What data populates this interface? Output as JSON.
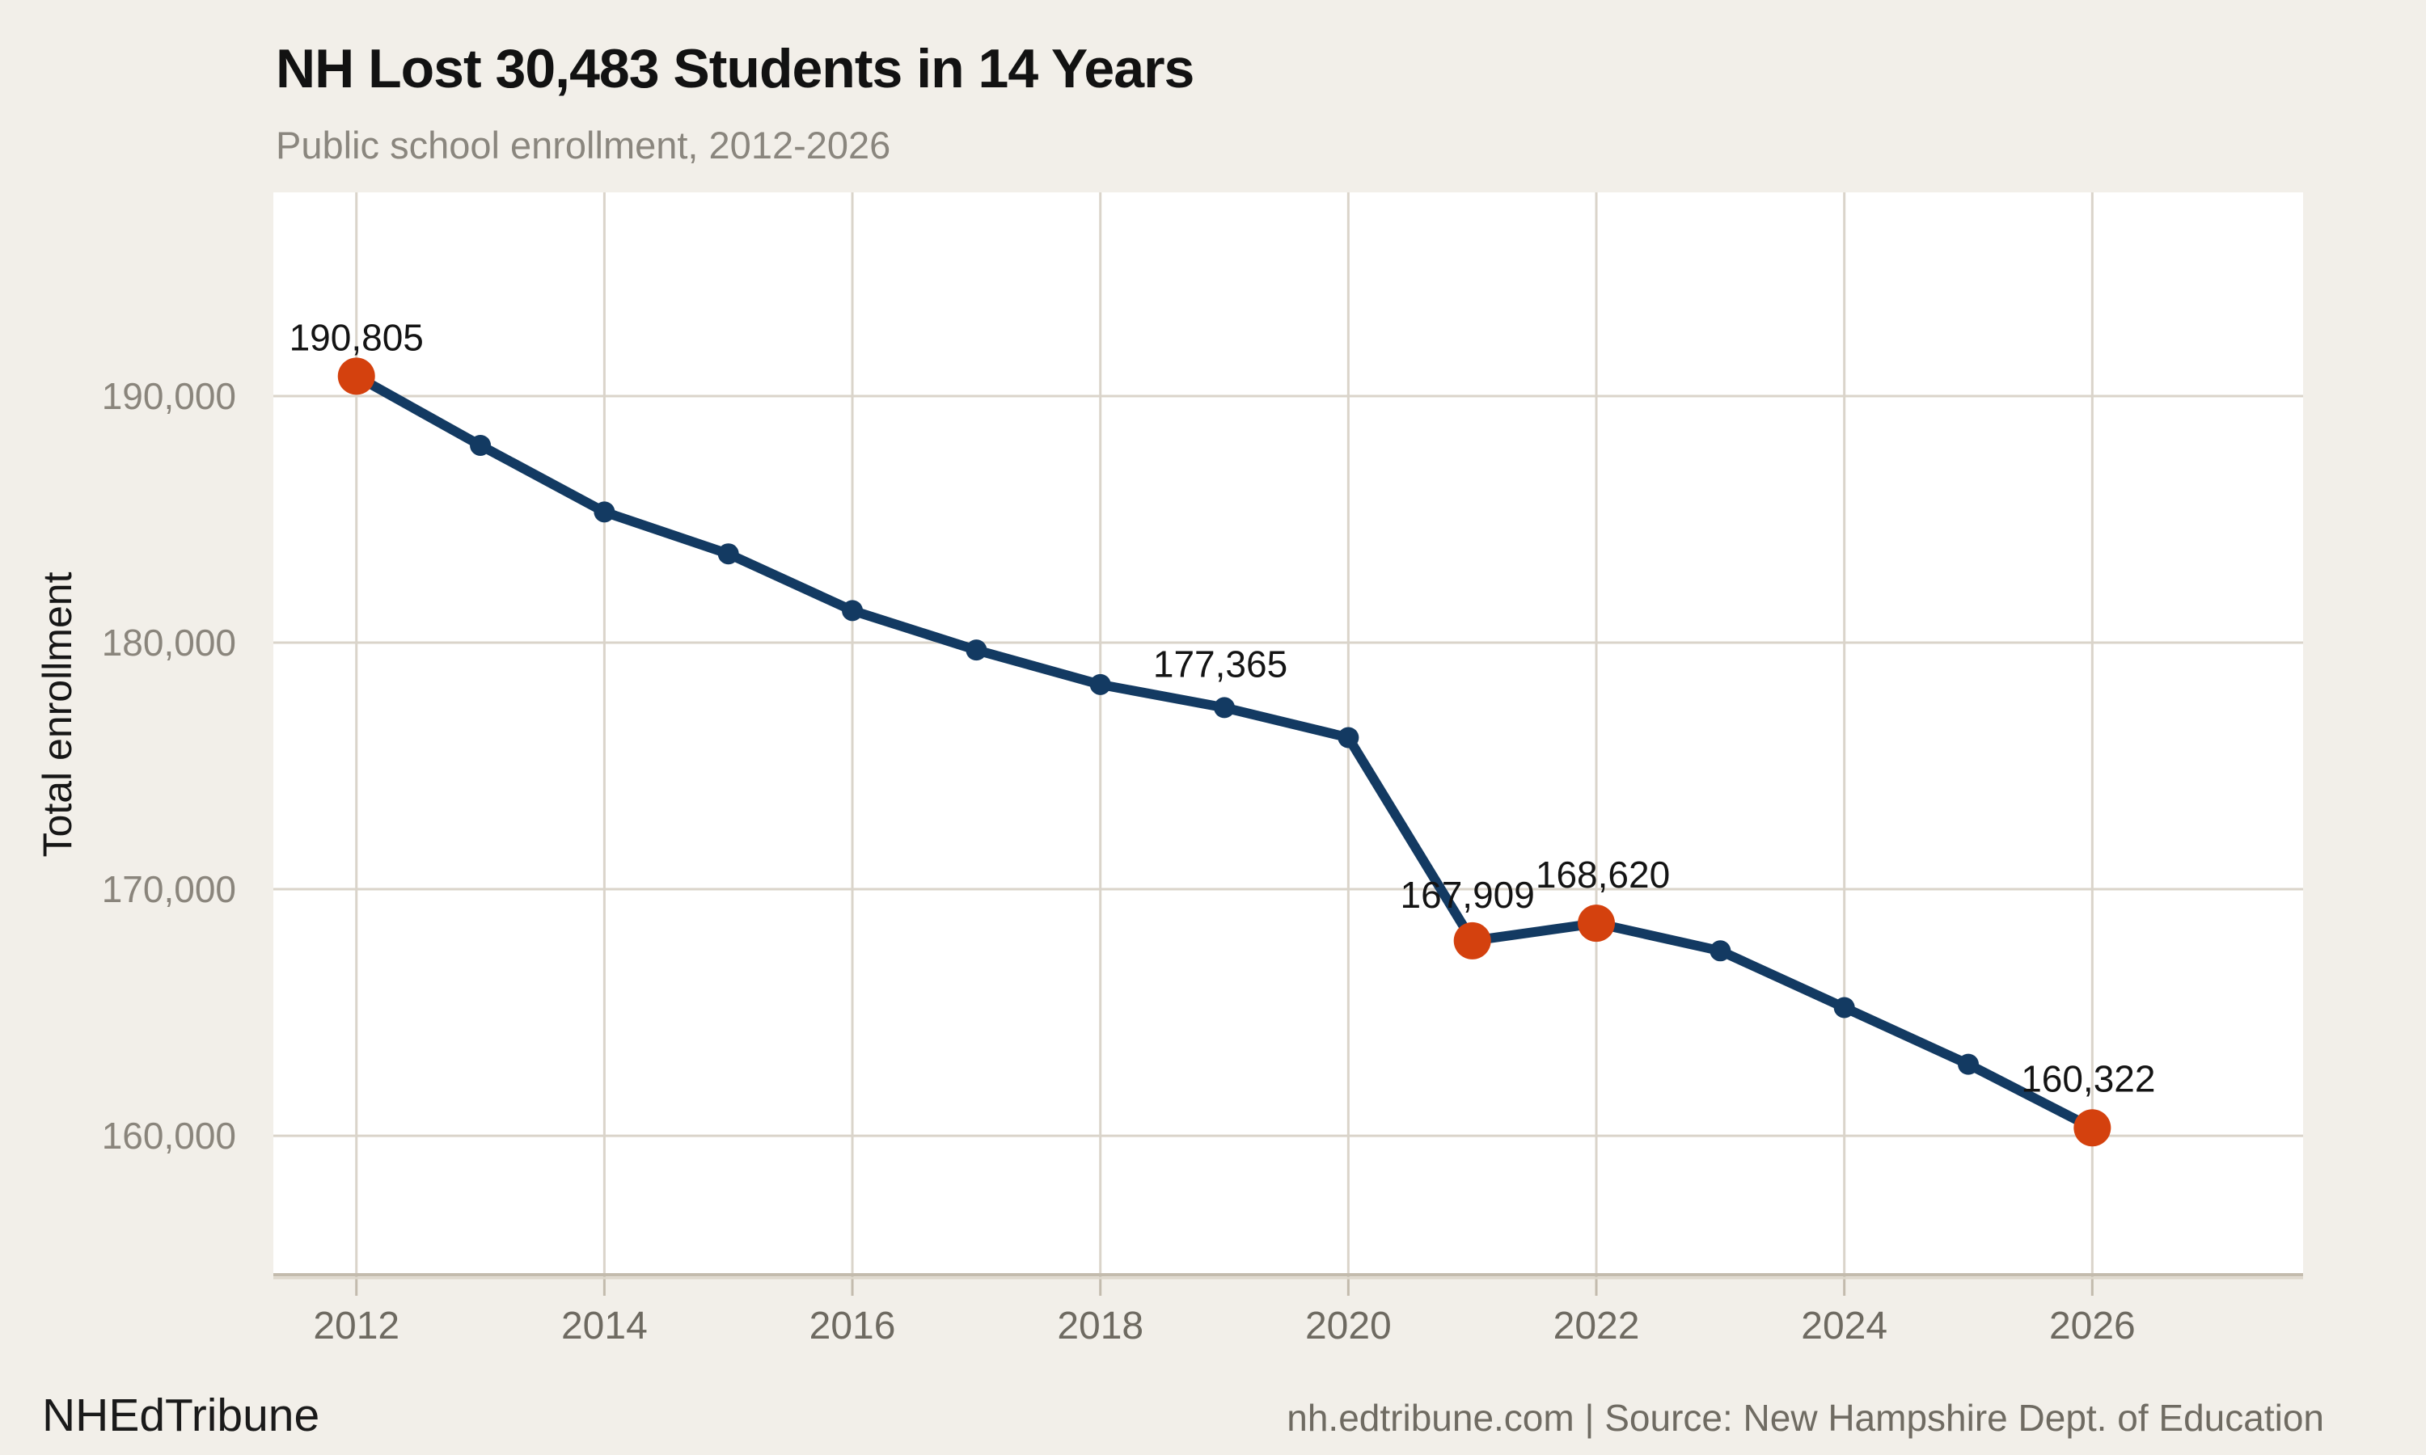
{
  "header": {
    "title": "NH Lost 30,483 Students in 14 Years",
    "subtitle": "Public school enrollment, 2012-2026"
  },
  "footer": {
    "brand": "NHEdTribune",
    "source": "nh.edtribune.com | Source: New Hampshire Dept. of Education"
  },
  "chart_data": {
    "type": "line",
    "title": "NH Lost 30,483 Students in 14 Years",
    "subtitle": "Public school enrollment, 2012-2026",
    "xlabel": "",
    "ylabel": "Total enrollment",
    "x": [
      2012,
      2013,
      2014,
      2015,
      2016,
      2017,
      2018,
      2019,
      2020,
      2021,
      2022,
      2023,
      2024,
      2025,
      2026
    ],
    "series": [
      {
        "name": "Total enrollment",
        "values": [
          190805,
          188000,
          185300,
          183600,
          181300,
          179700,
          178300,
          177365,
          176150,
          167909,
          168620,
          167500,
          165200,
          162900,
          160322
        ]
      }
    ],
    "annotated_points": [
      {
        "x": 2012,
        "value": 190805,
        "label": "190,805"
      },
      {
        "x": 2019,
        "value": 177365,
        "label": "177,365"
      },
      {
        "x": 2021,
        "value": 167909,
        "label": "167,909"
      },
      {
        "x": 2022,
        "value": 168620,
        "label": "168,620"
      },
      {
        "x": 2026,
        "value": 160322,
        "label": "160,322"
      }
    ],
    "highlight_x": [
      2012,
      2021,
      2022,
      2026
    ],
    "x_ticks": [
      2012,
      2014,
      2016,
      2018,
      2020,
      2022,
      2024,
      2026
    ],
    "y_ticks": [
      160000,
      170000,
      180000,
      190000
    ],
    "y_tick_labels": [
      "160,000",
      "170,000",
      "180,000",
      "190,000"
    ],
    "xlim": [
      2011.33,
      2027.7
    ],
    "ylim": [
      154430,
      198260
    ],
    "grid": true,
    "legend_position": "none",
    "colors": {
      "line": "#133A62",
      "point": "#133A62",
      "highlight_point": "#D4410E",
      "grid": "#DAD4CA",
      "axis": "#C3BBAD",
      "axis_shadow": "#DDD7CB",
      "plot_background": "#FFFFFF",
      "page_background": "#F2EFE9"
    }
  }
}
